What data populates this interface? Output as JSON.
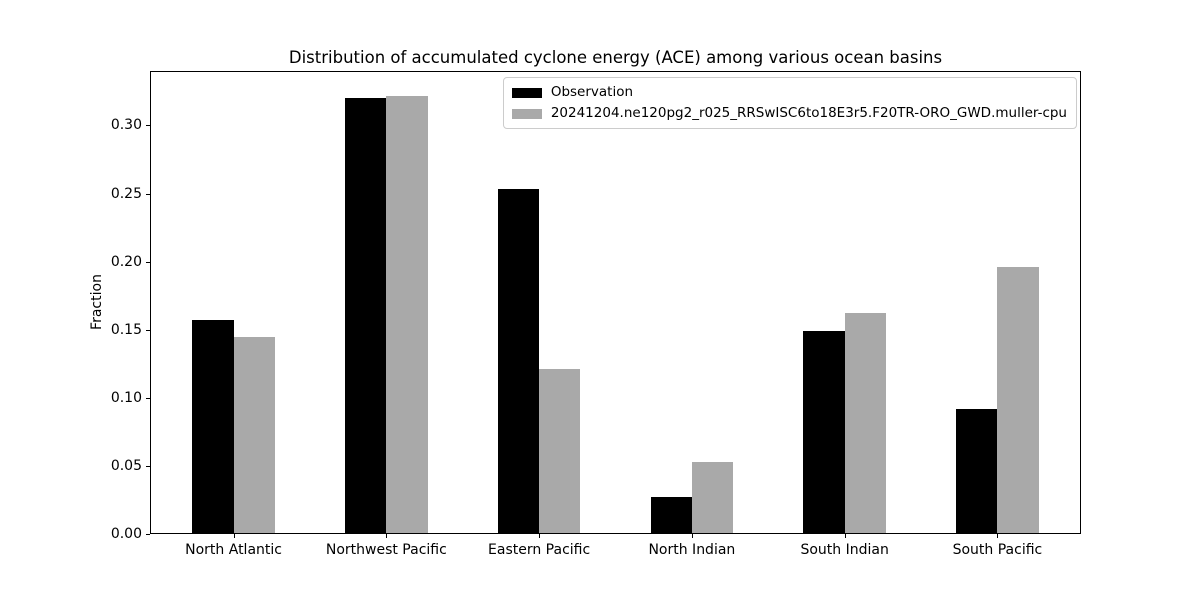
{
  "chart_data": {
    "type": "bar",
    "title": "Distribution of accumulated cyclone energy (ACE) among various ocean basins",
    "xlabel": "",
    "ylabel": "Fraction",
    "categories": [
      "North Atlantic",
      "Northwest Pacific",
      "Eastern Pacific",
      "North Indian",
      "South Indian",
      "South Pacific"
    ],
    "series": [
      {
        "name": "Observation",
        "color": "#000000",
        "values": [
          0.157,
          0.32,
          0.253,
          0.027,
          0.149,
          0.092
        ]
      },
      {
        "name": "20241204.ne120pg2_r025_RRSwISC6to18E3r5.F20TR-ORO_GWD.muller-cpu",
        "color": "#a9a9a9",
        "values": [
          0.145,
          0.322,
          0.121,
          0.053,
          0.162,
          0.196
        ]
      }
    ],
    "ylim": [
      0,
      0.34
    ],
    "yticks": [
      "0.00",
      "0.05",
      "0.10",
      "0.15",
      "0.20",
      "0.25",
      "0.30"
    ],
    "grid": false,
    "legend_position": "upper-right",
    "background_color": "#ffffff",
    "axis_color": "#000000"
  }
}
